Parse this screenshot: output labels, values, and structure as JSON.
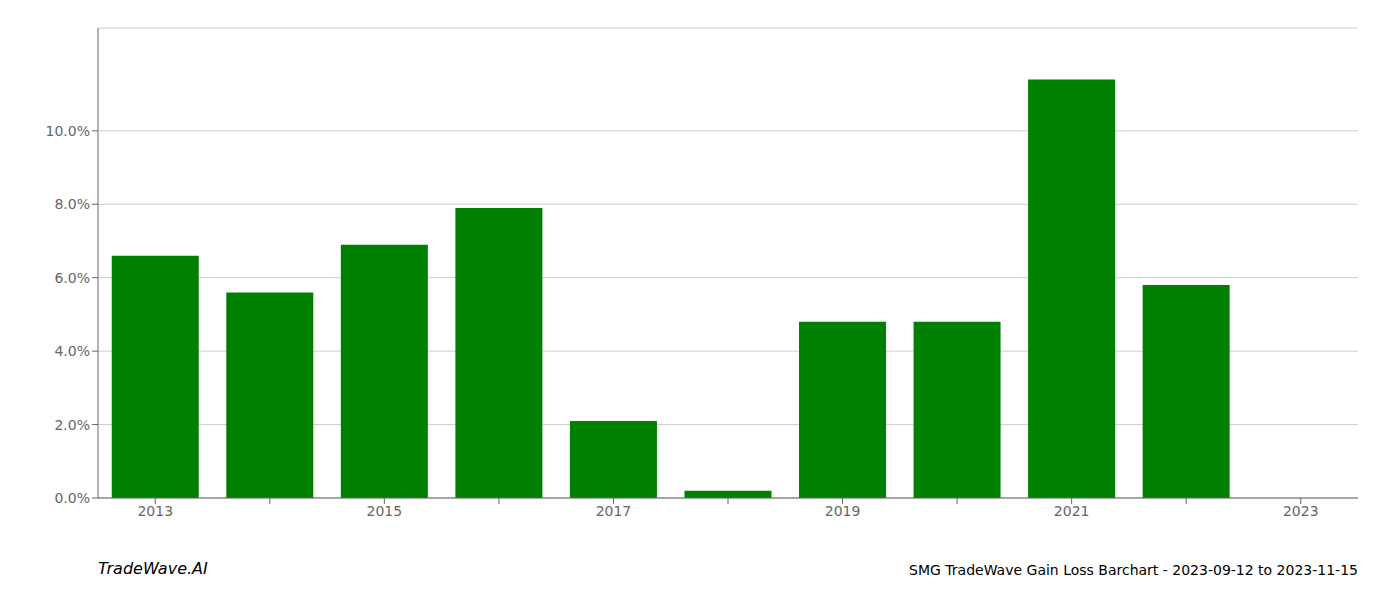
{
  "chart_data": {
    "type": "bar",
    "categories": [
      "2013",
      null,
      "2015",
      null,
      "2017",
      null,
      "2019",
      null,
      "2021",
      null,
      "2023"
    ],
    "values": [
      0.066,
      0.056,
      0.069,
      0.079,
      0.021,
      0.002,
      0.048,
      0.048,
      0.114,
      0.058,
      0.0
    ],
    "color": "#008000",
    "ylim": [
      0,
      0.128
    ],
    "yticks": [
      {
        "value": 0.0,
        "label": "0.0%"
      },
      {
        "value": 0.02,
        "label": "2.0%"
      },
      {
        "value": 0.04,
        "label": "4.0%"
      },
      {
        "value": 0.06,
        "label": "6.0%"
      },
      {
        "value": 0.08,
        "label": "8.0%"
      },
      {
        "value": 0.1,
        "label": "10.0%"
      }
    ],
    "grid": true,
    "annotations": [
      "TradeWave.AI",
      "SMG TradeWave Gain Loss Barchart - 2023-09-12 to 2023-11-15"
    ]
  }
}
